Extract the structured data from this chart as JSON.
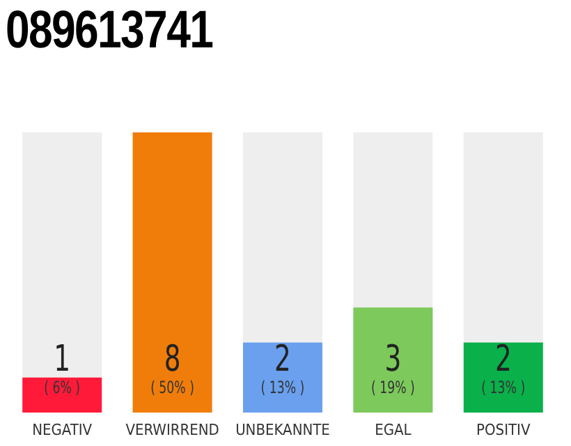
{
  "chart_data": {
    "type": "bar",
    "title": "089613741",
    "categories": [
      "NEGATIV",
      "VERWIRREND",
      "UNBEKANNTE",
      "EGAL",
      "POSITIV"
    ],
    "values": [
      1,
      8,
      2,
      3,
      2
    ],
    "colors": [
      "#ff1a3a",
      "#f07d0a",
      "#6aa0ee",
      "#7dc95c",
      "#0ab04a"
    ],
    "ylim": [
      0,
      8
    ],
    "tick_labels": "x",
    "data_labels": true,
    "grid": false,
    "legend": false,
    "annotations": [
      "( 6% )",
      "( 50% )",
      "( 13% )",
      "( 19% )",
      "( 13% )"
    ]
  }
}
